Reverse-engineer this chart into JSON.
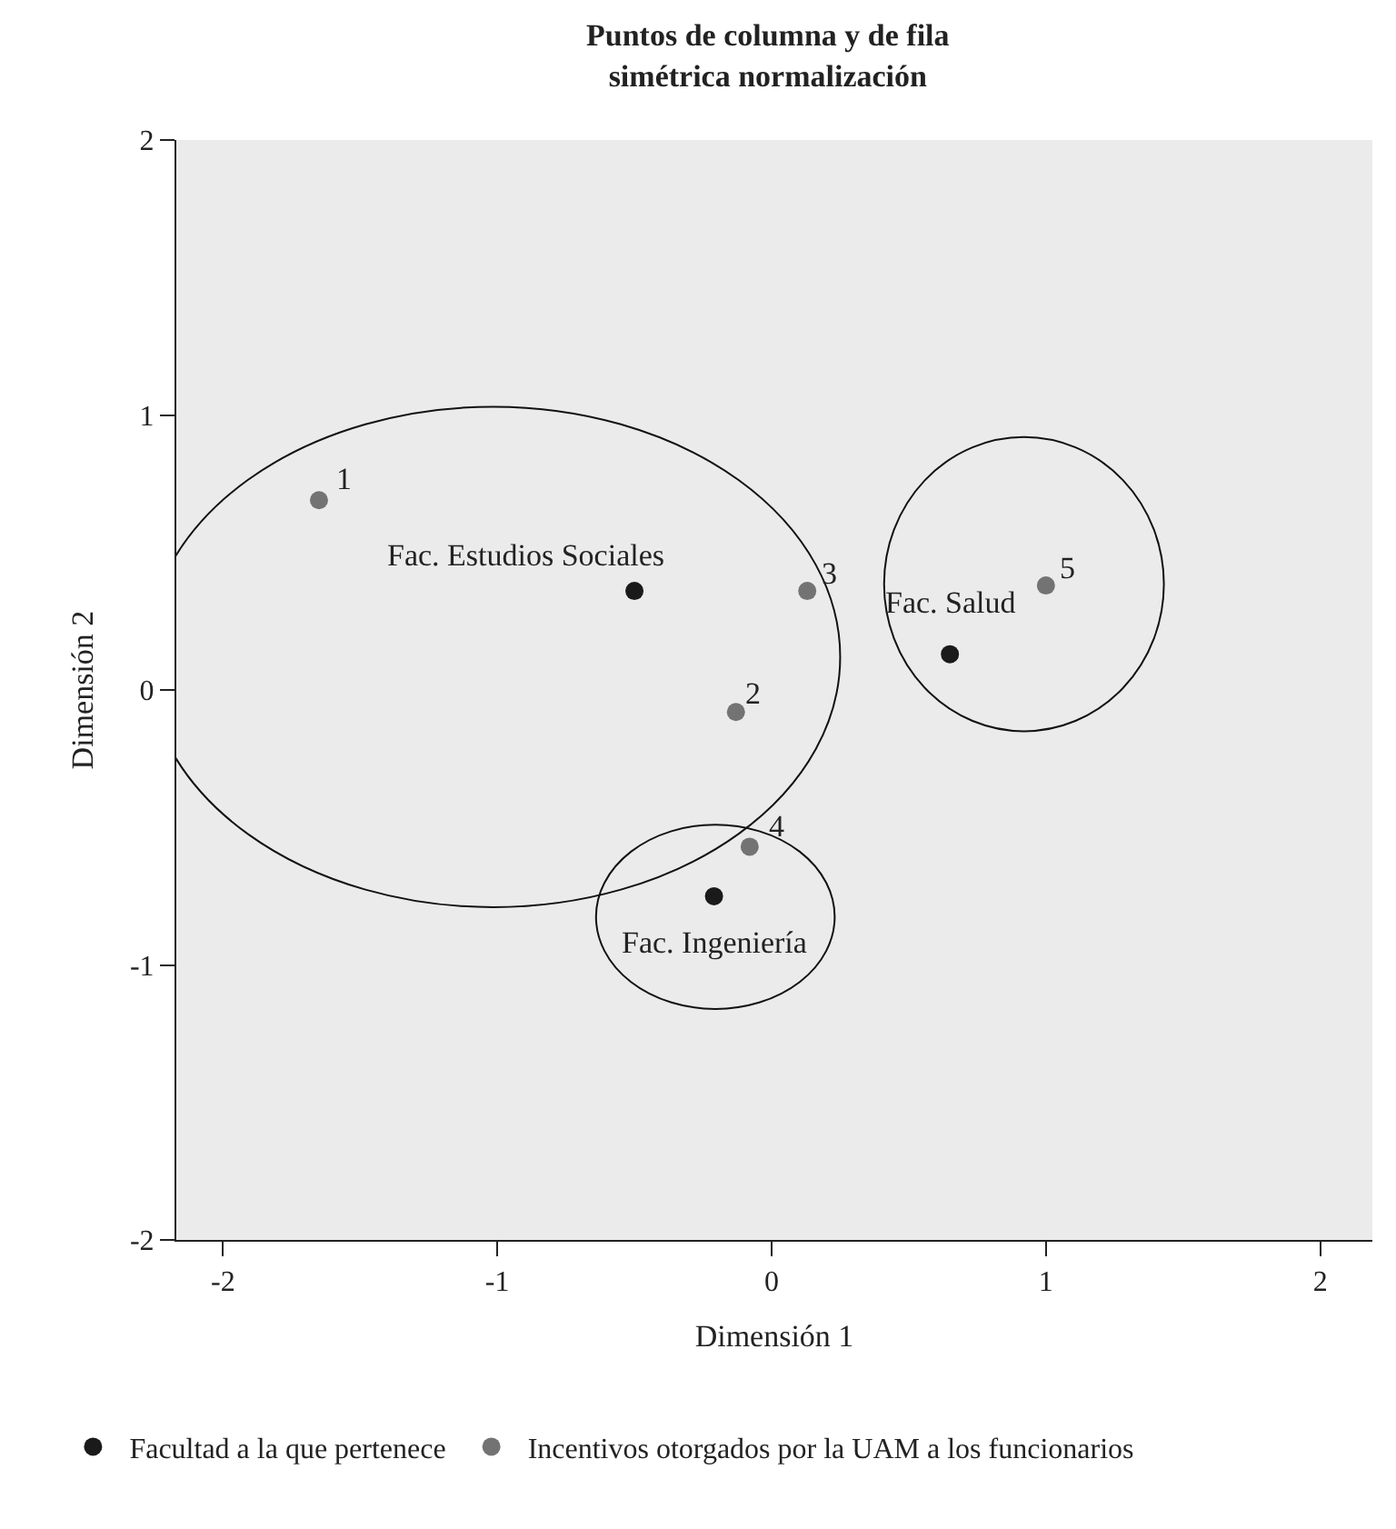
{
  "chart_data": {
    "type": "scatter",
    "title": "Puntos de columna y de fila\nsimétrica normalización",
    "xlabel": "Dimensión 1",
    "ylabel": "Dimensión 2",
    "xlim": [
      -2.17,
      2.19
    ],
    "ylim": [
      -2,
      2
    ],
    "xticks": [
      -2,
      -1,
      0,
      1,
      2
    ],
    "yticks": [
      -2,
      -1,
      0,
      1,
      2
    ],
    "grid": false,
    "legend": "bottom",
    "marker": "circle",
    "series": [
      {
        "name": "Facultad a la que pertenece",
        "color": "#1a1a1a",
        "x": [
          -0.5,
          0.65,
          -0.21
        ],
        "values": [
          0.36,
          0.13,
          -0.75
        ]
      },
      {
        "name": "Incentivos otorgados por la UAM a los funcionarios",
        "color": "#737373",
        "x": [
          -1.65,
          -0.13,
          0.13,
          -0.08,
          1.0
        ],
        "values": [
          0.69,
          -0.08,
          0.36,
          -0.57,
          0.38
        ]
      }
    ],
    "annotations": [
      {
        "text": "Fac. Estudios Sociales",
        "x": -0.5,
        "y": 0.36
      },
      {
        "text": "Fac. Salud",
        "x": 0.65,
        "y": 0.13
      },
      {
        "text": "Fac. Ingeniería",
        "x": -0.21,
        "y": -0.75
      },
      {
        "text": "1",
        "x": -1.65,
        "y": 0.69
      },
      {
        "text": "2",
        "x": -0.13,
        "y": -0.08
      },
      {
        "text": "3",
        "x": 0.13,
        "y": 0.36
      },
      {
        "text": "4",
        "x": -0.08,
        "y": -0.57
      },
      {
        "text": "5",
        "x": 1.0,
        "y": 0.38
      }
    ]
  }
}
